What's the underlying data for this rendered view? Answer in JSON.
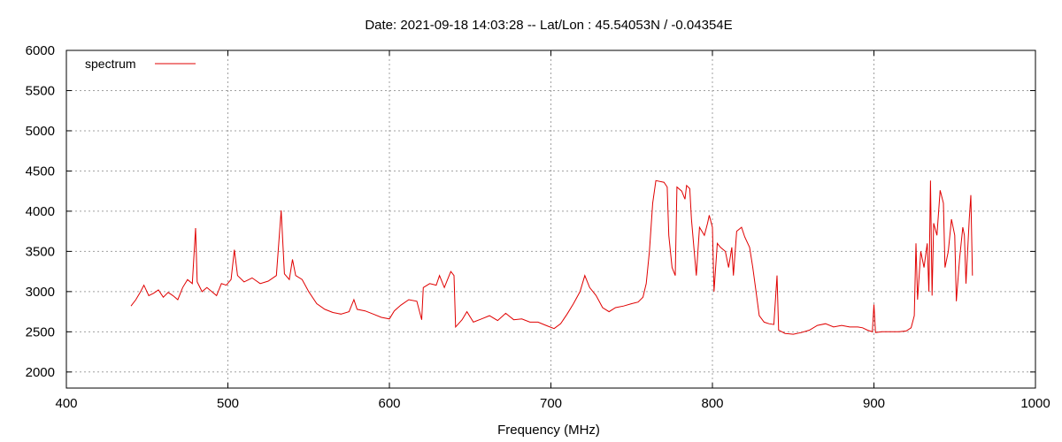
{
  "chart_data": {
    "type": "line",
    "title": "Date: 2021-09-18 14:03:28  --  Lat/Lon : 45.54053N / -0.04354E",
    "xlabel": "Frequency (MHz)",
    "ylabel": "",
    "xlim": [
      400,
      1000
    ],
    "ylim": [
      1800,
      6000
    ],
    "xticks": [
      400,
      500,
      600,
      700,
      800,
      900,
      1000
    ],
    "yticks": [
      2000,
      2500,
      3000,
      3500,
      4000,
      4500,
      5000,
      5500,
      6000
    ],
    "grid": true,
    "legend": "top-left",
    "series": [
      {
        "name": "spectrum",
        "color": "#e00000",
        "points": [
          [
            440,
            2820
          ],
          [
            443,
            2900
          ],
          [
            446,
            3000
          ],
          [
            448,
            3080
          ],
          [
            451,
            2950
          ],
          [
            454,
            2980
          ],
          [
            457,
            3020
          ],
          [
            460,
            2930
          ],
          [
            463,
            2990
          ],
          [
            466,
            2950
          ],
          [
            469,
            2900
          ],
          [
            472,
            3050
          ],
          [
            475,
            3150
          ],
          [
            478,
            3100
          ],
          [
            480,
            3790
          ],
          [
            481,
            3120
          ],
          [
            484,
            3000
          ],
          [
            487,
            3050
          ],
          [
            490,
            3000
          ],
          [
            493,
            2950
          ],
          [
            496,
            3100
          ],
          [
            499,
            3080
          ],
          [
            502,
            3150
          ],
          [
            504,
            3520
          ],
          [
            506,
            3200
          ],
          [
            510,
            3120
          ],
          [
            515,
            3170
          ],
          [
            520,
            3100
          ],
          [
            525,
            3130
          ],
          [
            530,
            3200
          ],
          [
            533,
            4010
          ],
          [
            535,
            3220
          ],
          [
            538,
            3150
          ],
          [
            540,
            3400
          ],
          [
            542,
            3200
          ],
          [
            546,
            3150
          ],
          [
            550,
            3000
          ],
          [
            555,
            2850
          ],
          [
            560,
            2780
          ],
          [
            565,
            2740
          ],
          [
            570,
            2720
          ],
          [
            575,
            2750
          ],
          [
            578,
            2900
          ],
          [
            580,
            2780
          ],
          [
            585,
            2760
          ],
          [
            590,
            2720
          ],
          [
            595,
            2680
          ],
          [
            600,
            2660
          ],
          [
            603,
            2760
          ],
          [
            607,
            2830
          ],
          [
            612,
            2900
          ],
          [
            617,
            2880
          ],
          [
            620,
            2650
          ],
          [
            621,
            3050
          ],
          [
            625,
            3100
          ],
          [
            629,
            3080
          ],
          [
            631,
            3200
          ],
          [
            634,
            3050
          ],
          [
            636,
            3150
          ],
          [
            638,
            3250
          ],
          [
            640,
            3200
          ],
          [
            641,
            2560
          ],
          [
            645,
            2650
          ],
          [
            648,
            2750
          ],
          [
            652,
            2620
          ],
          [
            657,
            2660
          ],
          [
            662,
            2700
          ],
          [
            667,
            2640
          ],
          [
            672,
            2730
          ],
          [
            677,
            2650
          ],
          [
            682,
            2660
          ],
          [
            687,
            2620
          ],
          [
            692,
            2620
          ],
          [
            697,
            2580
          ],
          [
            702,
            2540
          ],
          [
            706,
            2600
          ],
          [
            710,
            2720
          ],
          [
            714,
            2850
          ],
          [
            718,
            3000
          ],
          [
            721,
            3200
          ],
          [
            724,
            3050
          ],
          [
            728,
            2950
          ],
          [
            732,
            2800
          ],
          [
            736,
            2750
          ],
          [
            740,
            2800
          ],
          [
            745,
            2820
          ],
          [
            750,
            2850
          ],
          [
            754,
            2870
          ],
          [
            757,
            2930
          ],
          [
            759,
            3100
          ],
          [
            761,
            3500
          ],
          [
            763,
            4100
          ],
          [
            765,
            4380
          ],
          [
            770,
            4360
          ],
          [
            772,
            4300
          ],
          [
            773,
            3700
          ],
          [
            775,
            3300
          ],
          [
            777,
            3200
          ],
          [
            778,
            4300
          ],
          [
            781,
            4250
          ],
          [
            783,
            4150
          ],
          [
            784,
            4320
          ],
          [
            786,
            4280
          ],
          [
            787,
            3900
          ],
          [
            790,
            3200
          ],
          [
            792,
            3800
          ],
          [
            795,
            3700
          ],
          [
            797,
            3850
          ],
          [
            798,
            3950
          ],
          [
            800,
            3800
          ],
          [
            801,
            3000
          ],
          [
            803,
            3600
          ],
          [
            805,
            3550
          ],
          [
            808,
            3500
          ],
          [
            810,
            3300
          ],
          [
            812,
            3550
          ],
          [
            813,
            3200
          ],
          [
            815,
            3750
          ],
          [
            818,
            3800
          ],
          [
            820,
            3680
          ],
          [
            823,
            3550
          ],
          [
            825,
            3300
          ],
          [
            827,
            3000
          ],
          [
            829,
            2700
          ],
          [
            832,
            2620
          ],
          [
            835,
            2600
          ],
          [
            838,
            2590
          ],
          [
            840,
            3200
          ],
          [
            841,
            2520
          ],
          [
            845,
            2480
          ],
          [
            850,
            2470
          ],
          [
            855,
            2490
          ],
          [
            860,
            2520
          ],
          [
            865,
            2580
          ],
          [
            870,
            2600
          ],
          [
            875,
            2560
          ],
          [
            880,
            2580
          ],
          [
            885,
            2560
          ],
          [
            890,
            2560
          ],
          [
            893,
            2550
          ],
          [
            896,
            2520
          ],
          [
            899,
            2500
          ],
          [
            900,
            2840
          ],
          [
            901,
            2490
          ],
          [
            905,
            2500
          ],
          [
            910,
            2500
          ],
          [
            915,
            2500
          ],
          [
            920,
            2510
          ],
          [
            923,
            2550
          ],
          [
            925,
            2700
          ],
          [
            926,
            3600
          ],
          [
            927,
            2900
          ],
          [
            929,
            3500
          ],
          [
            931,
            3300
          ],
          [
            933,
            3600
          ],
          [
            934,
            3000
          ],
          [
            935,
            4380
          ],
          [
            936,
            2950
          ],
          [
            937,
            3850
          ],
          [
            939,
            3700
          ],
          [
            941,
            4260
          ],
          [
            943,
            4100
          ],
          [
            944,
            3300
          ],
          [
            946,
            3500
          ],
          [
            948,
            3900
          ],
          [
            950,
            3700
          ],
          [
            951,
            2880
          ],
          [
            953,
            3400
          ],
          [
            955,
            3800
          ],
          [
            956,
            3700
          ],
          [
            957,
            3100
          ],
          [
            959,
            3900
          ],
          [
            960,
            4200
          ],
          [
            961,
            3200
          ]
        ]
      }
    ]
  }
}
